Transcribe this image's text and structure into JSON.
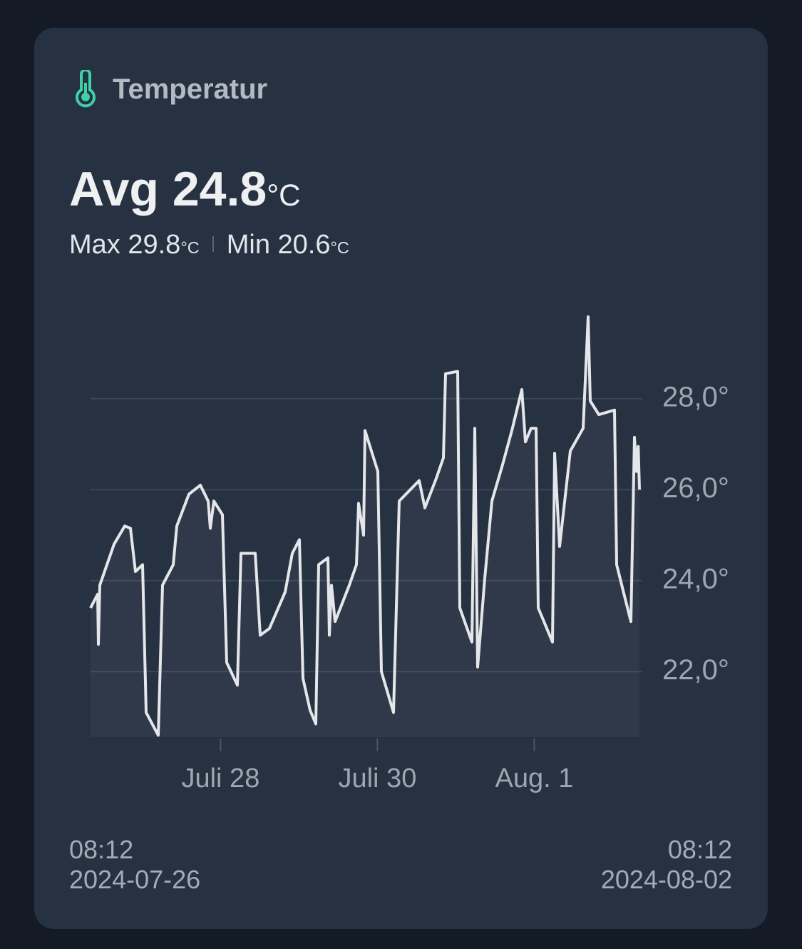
{
  "header": {
    "title": "Temperatur"
  },
  "summary": {
    "avg_label": "Avg",
    "avg": 24.8,
    "unit": "°C",
    "max_label": "Max",
    "max": 29.8,
    "min_label": "Min",
    "min": 20.6
  },
  "chart_data": {
    "type": "line",
    "color": "#e4e6e9",
    "grid": true,
    "x": [
      "2024-07-26T08:12",
      "2024-07-26T10:23",
      "2024-07-26T10:36",
      "2024-07-26T11:02",
      "2024-07-26T15:24",
      "2024-07-26T18:40",
      "2024-07-26T20:25",
      "2024-07-26T21:57",
      "2024-07-27T00:08",
      "2024-07-27T01:13",
      "2024-07-27T04:56",
      "2024-07-27T06:14",
      "2024-07-27T09:31",
      "2024-07-27T10:36",
      "2024-07-27T14:19",
      "2024-07-27T17:48",
      "2024-07-27T20:12",
      "2024-07-27T20:51",
      "2024-07-27T21:57",
      "2024-07-28T00:34",
      "2024-07-28T01:52",
      "2024-07-28T05:09",
      "2024-07-28T06:14",
      "2024-07-28T10:36",
      "2024-07-28T12:08",
      "2024-07-28T14:58",
      "2024-07-28T19:46",
      "2024-07-28T21:57",
      "2024-07-29T00:08",
      "2024-07-29T01:13",
      "2024-07-29T03:24",
      "2024-07-29T05:09",
      "2024-07-29T06:01",
      "2024-07-29T08:51",
      "2024-07-29T09:17",
      "2024-07-29T09:57",
      "2024-07-29T11:02",
      "2024-07-29T15:24",
      "2024-07-29T17:35",
      "2024-07-29T18:14",
      "2024-07-29T19:46",
      "2024-07-29T20:12",
      "2024-07-30T00:08",
      "2024-07-30T01:13",
      "2024-07-30T04:56",
      "2024-07-30T06:40",
      "2024-07-30T12:47",
      "2024-07-30T14:32",
      "2024-07-30T18:01",
      "2024-07-30T20:12",
      "2024-07-30T20:51",
      "2024-07-31T00:34",
      "2024-07-31T01:13",
      "2024-07-31T04:56",
      "2024-07-31T05:48",
      "2024-07-31T06:40",
      "2024-07-31T08:51",
      "2024-07-31T11:02",
      "2024-07-31T14:19",
      "2024-07-31T17:09",
      "2024-07-31T20:12",
      "2024-07-31T21:17",
      "2024-07-31T23:02",
      "2024-08-01T00:34",
      "2024-08-01T01:13",
      "2024-08-01T05:35",
      "2024-08-01T06:14",
      "2024-08-01T07:46",
      "2024-08-01T11:02",
      "2024-08-01T14:58",
      "2024-08-01T16:29",
      "2024-08-01T17:09",
      "2024-08-01T19:46",
      "2024-08-02T00:34",
      "2024-08-02T01:13",
      "2024-08-02T05:35",
      "2024-08-02T06:40",
      "2024-08-02T07:20",
      "2024-08-02T07:50",
      "2024-08-02T08:12"
    ],
    "values": [
      23.4,
      23.7,
      22.6,
      23.9,
      24.8,
      25.2,
      25.15,
      24.2,
      24.35,
      21.1,
      20.6,
      23.9,
      24.35,
      25.2,
      25.9,
      26.1,
      25.75,
      25.15,
      25.75,
      25.45,
      22.2,
      21.7,
      24.6,
      24.6,
      22.8,
      22.95,
      23.75,
      24.6,
      24.9,
      21.85,
      21.15,
      20.85,
      24.35,
      24.5,
      22.8,
      23.9,
      23.1,
      23.9,
      24.35,
      25.7,
      25.0,
      27.3,
      26.4,
      22.0,
      21.1,
      25.75,
      26.2,
      25.6,
      26.25,
      26.7,
      28.55,
      28.6,
      23.4,
      22.65,
      27.35,
      22.1,
      24.05,
      25.75,
      26.55,
      27.3,
      28.2,
      27.05,
      27.35,
      27.35,
      23.4,
      22.65,
      26.8,
      24.75,
      26.85,
      27.35,
      29.8,
      27.95,
      27.65,
      27.75,
      24.35,
      23.1,
      27.15,
      26.4,
      26.95,
      26.0
    ],
    "xlim": [
      "2024-07-26T08:12",
      "2024-08-02T08:12"
    ],
    "xticks": [
      {
        "value": "2024-07-28T00:00",
        "label": "Juli 28"
      },
      {
        "value": "2024-07-30T00:00",
        "label": "Juli 30"
      },
      {
        "value": "2024-08-01T00:00",
        "label": "Aug. 1"
      }
    ],
    "ylim": [
      20.56,
      29.8
    ],
    "yticks": [
      {
        "value": 22,
        "label": "22,0°"
      },
      {
        "value": 24,
        "label": "24,0°"
      },
      {
        "value": 26,
        "label": "26,0°"
      },
      {
        "value": 28,
        "label": "28,0°"
      }
    ]
  },
  "footer": {
    "start": {
      "time": "08:12",
      "date": "2024-07-26"
    },
    "end": {
      "time": "08:12",
      "date": "2024-08-02"
    }
  }
}
